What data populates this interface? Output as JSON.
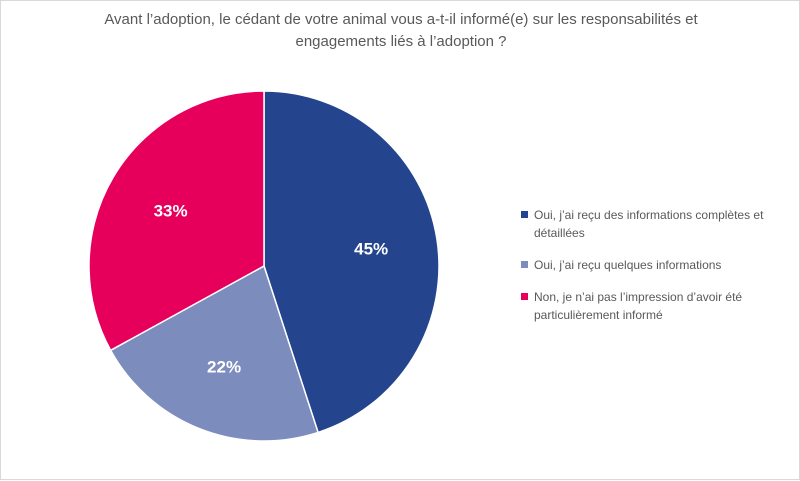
{
  "chart_data": {
    "type": "pie",
    "title": "Avant l’adoption, le cédant de votre animal vous a-t-il informé(e) sur les responsabilités et engagements liés à l’adoption ?",
    "categories": [
      "Oui, j’ai reçu des informations complètes et détaillées",
      "Oui, j’ai reçu quelques informations",
      "Non, je n’ai pas l’impression d’avoir été particulièrement informé"
    ],
    "values": [
      45,
      22,
      33
    ],
    "value_labels": [
      "45%",
      "22%",
      "33%"
    ],
    "colors": [
      "#24448e",
      "#7b8cbd",
      "#e6005c"
    ],
    "start": "top",
    "direction": "clockwise",
    "legend_position": "right"
  }
}
